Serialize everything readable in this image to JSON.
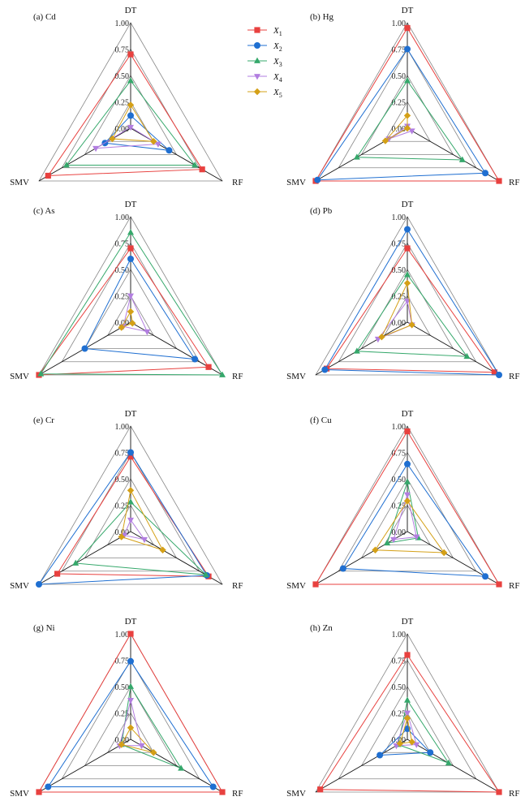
{
  "chart_data": [
    {
      "type": "radar",
      "title": "(a) Cd",
      "axes": [
        "DT",
        "RF",
        "SMV"
      ],
      "ticks": [
        "1.00",
        "0.75",
        "0.50",
        "0.25",
        "0.00"
      ],
      "series": [
        {
          "name": "X1",
          "values": [
            0.7,
            0.78,
            0.9
          ]
        },
        {
          "name": "X2",
          "values": [
            0.12,
            0.42,
            0.28
          ]
        },
        {
          "name": "X3",
          "values": [
            0.45,
            0.7,
            0.7
          ]
        },
        {
          "name": "X4",
          "values": [
            0.01,
            0.3,
            0.38
          ]
        },
        {
          "name": "X5",
          "values": [
            0.22,
            0.25,
            0.2
          ]
        }
      ]
    },
    {
      "type": "radar",
      "title": "(b) Hg",
      "axes": [
        "DT",
        "RF",
        "SMV"
      ],
      "ticks": [
        "1.00",
        "0.75",
        "0.50",
        "0.25",
        "0.00"
      ],
      "series": [
        {
          "name": "X1",
          "values": [
            0.95,
            1.0,
            1.0
          ]
        },
        {
          "name": "X2",
          "values": [
            0.75,
            0.85,
            0.98
          ]
        },
        {
          "name": "X3",
          "values": [
            0.45,
            0.6,
            0.55
          ]
        },
        {
          "name": "X4",
          "values": [
            0.02,
            0.05,
            0.2
          ]
        },
        {
          "name": "X5",
          "values": [
            0.12,
            0.0,
            0.24
          ]
        }
      ]
    },
    {
      "type": "radar",
      "title": "(c) As",
      "axes": [
        "DT",
        "RF",
        "SMV"
      ],
      "ticks": [
        "1.00",
        "0.75",
        "0.50",
        "0.25",
        "0.00"
      ],
      "series": [
        {
          "name": "X1",
          "values": [
            0.7,
            0.85,
            1.0
          ]
        },
        {
          "name": "X2",
          "values": [
            0.6,
            0.7,
            0.5
          ]
        },
        {
          "name": "X3",
          "values": [
            0.85,
            1.0,
            0.98
          ]
        },
        {
          "name": "X4",
          "values": [
            0.25,
            0.18,
            0.08
          ]
        },
        {
          "name": "X5",
          "values": [
            0.1,
            0.02,
            0.1
          ]
        }
      ]
    },
    {
      "type": "radar",
      "title": "(d) Pb",
      "axes": [
        "DT",
        "RF",
        "SMV"
      ],
      "ticks": [
        "1.00",
        "0.75",
        "0.50",
        "0.25",
        "0.00"
      ],
      "series": [
        {
          "name": "X1",
          "values": [
            0.7,
            0.95,
            0.88
          ]
        },
        {
          "name": "X2",
          "values": [
            0.88,
            1.0,
            0.9
          ]
        },
        {
          "name": "X3",
          "values": [
            0.45,
            0.65,
            0.55
          ]
        },
        {
          "name": "X4",
          "values": [
            0.2,
            0.05,
            0.32
          ]
        },
        {
          "name": "X5",
          "values": [
            0.37,
            0.05,
            0.28
          ]
        }
      ]
    },
    {
      "type": "radar",
      "title": "(e) Cr",
      "axes": [
        "DT",
        "RF",
        "SMV"
      ],
      "ticks": [
        "1.00",
        "0.75",
        "0.50",
        "0.25",
        "0.00"
      ],
      "series": [
        {
          "name": "X1",
          "values": [
            0.71,
            0.85,
            0.8
          ]
        },
        {
          "name": "X2",
          "values": [
            0.75,
            0.83,
            1.0
          ]
        },
        {
          "name": "X3",
          "values": [
            0.28,
            0.82,
            0.6
          ]
        },
        {
          "name": "X4",
          "values": [
            0.11,
            0.15,
            0.07
          ]
        },
        {
          "name": "X5",
          "values": [
            0.39,
            0.35,
            0.1
          ]
        }
      ]
    },
    {
      "type": "radar",
      "title": "(f) Cu",
      "axes": [
        "DT",
        "RF",
        "SMV"
      ],
      "ticks": [
        "1.00",
        "0.75",
        "0.50",
        "0.25",
        "0.00"
      ],
      "series": [
        {
          "name": "X1",
          "values": [
            0.95,
            1.0,
            1.0
          ]
        },
        {
          "name": "X2",
          "values": [
            0.64,
            0.85,
            0.7
          ]
        },
        {
          "name": "X3",
          "values": [
            0.47,
            0.12,
            0.22
          ]
        },
        {
          "name": "X4",
          "values": [
            0.35,
            0.1,
            0.15
          ]
        },
        {
          "name": "X5",
          "values": [
            0.29,
            0.4,
            0.35
          ]
        }
      ]
    },
    {
      "type": "radar",
      "title": "(g) Ni",
      "axes": [
        "DT",
        "RF",
        "SMV"
      ],
      "ticks": [
        "1.00",
        "0.75",
        "0.50",
        "0.25",
        "0.00"
      ],
      "series": [
        {
          "name": "X1",
          "values": [
            1.0,
            1.0,
            1.0
          ]
        },
        {
          "name": "X2",
          "values": [
            0.74,
            0.9,
            0.9
          ]
        },
        {
          "name": "X3",
          "values": [
            0.5,
            0.55,
            0.1
          ]
        },
        {
          "name": "X4",
          "values": [
            0.37,
            0.12,
            0.12
          ]
        },
        {
          "name": "X5",
          "values": [
            0.11,
            0.25,
            0.1
          ]
        }
      ]
    },
    {
      "type": "radar",
      "title": "(h) Zn",
      "axes": [
        "DT",
        "RF",
        "SMV"
      ],
      "ticks": [
        "1.00",
        "0.75",
        "0.50",
        "0.25",
        "0.00"
      ],
      "series": [
        {
          "name": "X1",
          "values": [
            0.8,
            1.0,
            0.95
          ]
        },
        {
          "name": "X2",
          "values": [
            0.1,
            0.25,
            0.3
          ]
        },
        {
          "name": "X3",
          "values": [
            0.37,
            0.45,
            0.1
          ]
        },
        {
          "name": "X4",
          "values": [
            0.25,
            0.1,
            0.12
          ]
        },
        {
          "name": "X5",
          "values": [
            0.2,
            0.05,
            0.08
          ]
        }
      ]
    }
  ],
  "legend": [
    {
      "letter": "X",
      "sub": "1",
      "color": "#e8413f",
      "marker": "square"
    },
    {
      "letter": "X",
      "sub": "2",
      "color": "#1f6fd1",
      "marker": "circle"
    },
    {
      "letter": "X",
      "sub": "3",
      "color": "#35a86b",
      "marker": "triangle-up"
    },
    {
      "letter": "X",
      "sub": "4",
      "color": "#b27ee0",
      "marker": "triangle-down"
    },
    {
      "letter": "X",
      "sub": "5",
      "color": "#d4a017",
      "marker": "diamond"
    }
  ],
  "colors": {
    "grid": "#888888",
    "axis": "#111111"
  }
}
